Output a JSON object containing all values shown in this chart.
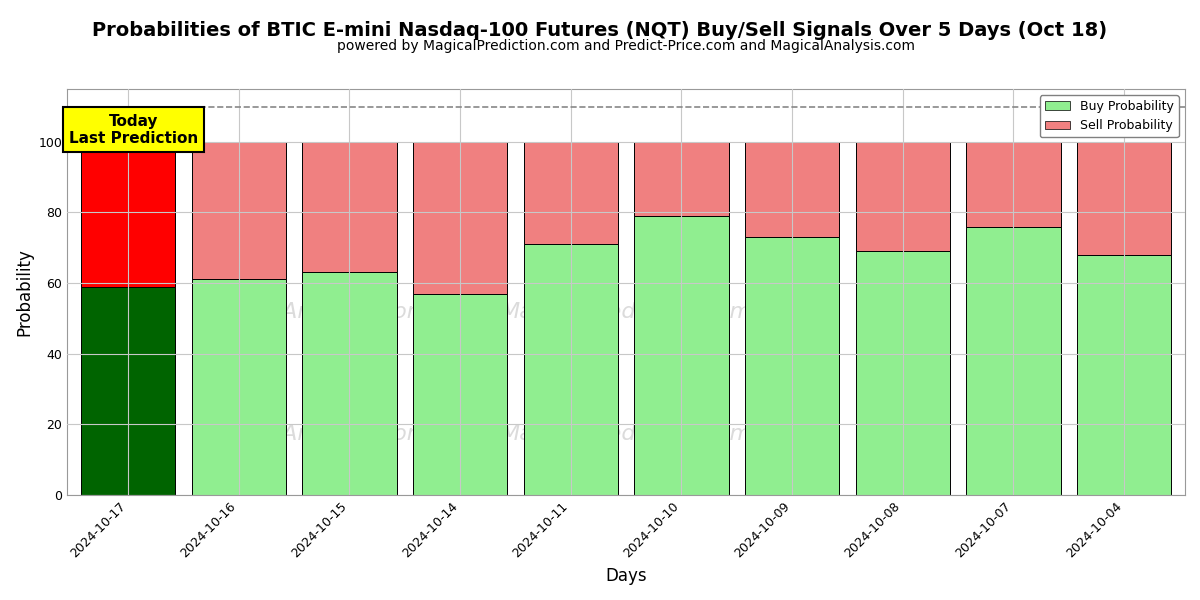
{
  "title": "Probabilities of BTIC E-mini Nasdaq-100 Futures (NQT) Buy/Sell Signals Over 5 Days (Oct 18)",
  "subtitle": "powered by MagicalPrediction.com and Predict-Price.com and MagicalAnalysis.com",
  "xlabel": "Days",
  "ylabel": "Probability",
  "dates": [
    "2024-10-17",
    "2024-10-16",
    "2024-10-15",
    "2024-10-14",
    "2024-10-11",
    "2024-10-10",
    "2024-10-09",
    "2024-10-08",
    "2024-10-07",
    "2024-10-04"
  ],
  "buy_probs": [
    59,
    61,
    63,
    57,
    71,
    79,
    73,
    69,
    76,
    68
  ],
  "sell_probs": [
    41,
    39,
    37,
    43,
    29,
    21,
    27,
    31,
    24,
    32
  ],
  "today_bar_buy_color": "#006400",
  "today_bar_sell_color": "#FF0000",
  "regular_bar_buy_color": "#90EE90",
  "regular_bar_sell_color": "#F08080",
  "today_annotation_bg": "#FFFF00",
  "today_annotation_text": "Today\nLast Prediction",
  "ylim": [
    0,
    115
  ],
  "yticks": [
    0,
    20,
    40,
    60,
    80,
    100
  ],
  "dashed_line_y": 110,
  "dashed_line_color": "#888888",
  "grid_color": "#C8C8C8",
  "bar_edge_color": "#000000",
  "bar_width": 0.85,
  "watermark_color": "#CCCCCC",
  "legend_buy_label": "Buy Probability",
  "legend_sell_label": "Sell Probability",
  "title_fontsize": 14,
  "subtitle_fontsize": 10,
  "axis_label_fontsize": 12,
  "tick_fontsize": 9,
  "plot_bg_color": "#FFFFFF",
  "fig_bg_color": "#FFFFFF"
}
